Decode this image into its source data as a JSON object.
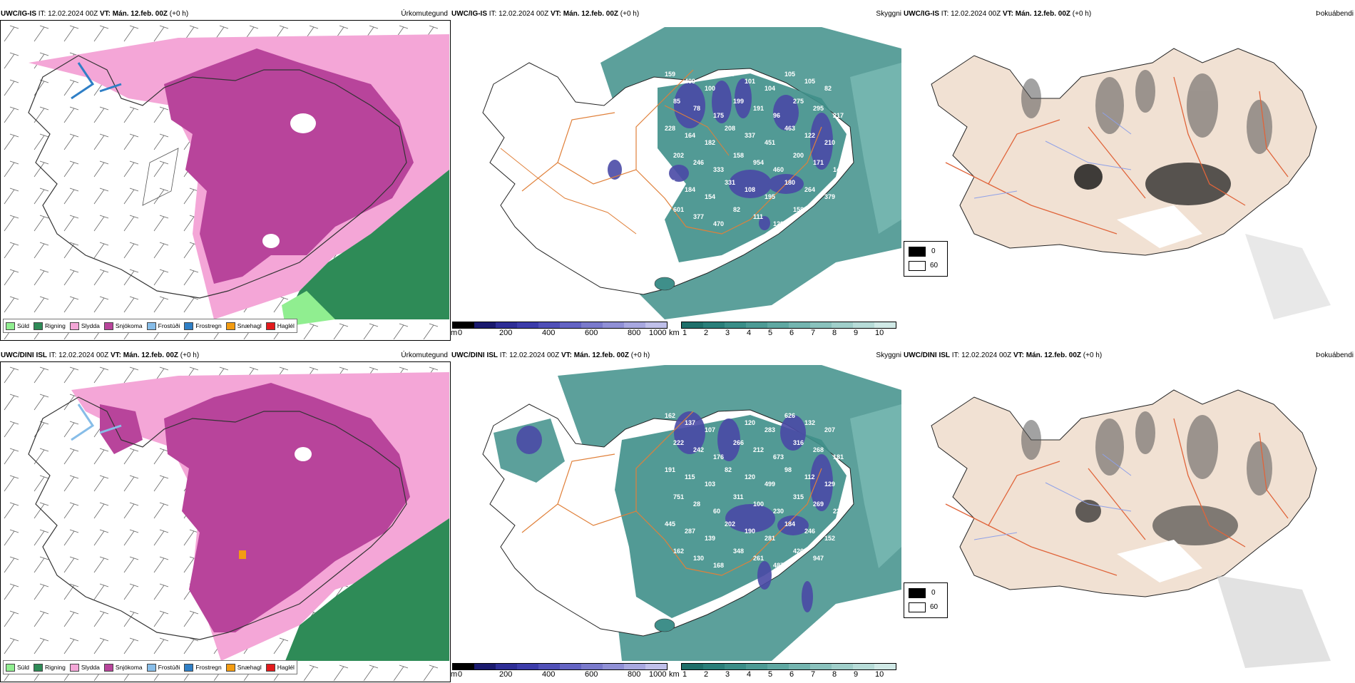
{
  "rows": [
    {
      "model": "UWC/IG-IS",
      "it_label": "IT:",
      "it_value": "12.02.2024 00Z",
      "vt_label": "VT:",
      "vt_value": "Mán. 12.feb. 00Z",
      "lead": "(+0 h)",
      "cloud_labels": [
        "159",
        "409",
        "100",
        "107",
        "101",
        "104",
        "105",
        "105",
        "82",
        "85",
        "78",
        "175",
        "199",
        "191",
        "96",
        "275",
        "295",
        "217",
        "228",
        "164",
        "182",
        "208",
        "337",
        "451",
        "463",
        "122",
        "210",
        "202",
        "246",
        "333",
        "158",
        "954",
        "460",
        "200",
        "171",
        "148",
        "195",
        "184",
        "154",
        "331",
        "108",
        "195",
        "180",
        "264",
        "379",
        "601",
        "377",
        "470",
        "82",
        "111",
        "129",
        "158"
      ]
    },
    {
      "model": "UWC/DINI ISL",
      "it_label": "IT:",
      "it_value": "12.02.2024 00Z",
      "vt_label": "VT:",
      "vt_value": "Mán. 12.feb. 00Z",
      "lead": "(+0 h)",
      "cloud_labels": [
        "162",
        "137",
        "107",
        "97",
        "120",
        "283",
        "626",
        "132",
        "207",
        "222",
        "242",
        "176",
        "266",
        "212",
        "673",
        "316",
        "268",
        "181",
        "191",
        "115",
        "103",
        "82",
        "120",
        "499",
        "98",
        "112",
        "129",
        "751",
        "28",
        "60",
        "311",
        "100",
        "230",
        "315",
        "269",
        "230",
        "445",
        "287",
        "139",
        "202",
        "190",
        "281",
        "184",
        "246",
        "152",
        "162",
        "130",
        "168",
        "348",
        "261",
        "487",
        "420",
        "947"
      ]
    }
  ],
  "panel_titles": [
    "Úrkomutegund",
    "Skyggni",
    "Þokuábendi"
  ],
  "precip_legend": [
    {
      "label": "Súld",
      "color": "#90ee90"
    },
    {
      "label": "Rigning",
      "color": "#2e8b57"
    },
    {
      "label": "Slydda",
      "color": "#f4a6d7"
    },
    {
      "label": "Snjókoma",
      "color": "#b8449b"
    },
    {
      "label": "Frostúði",
      "color": "#87bde8"
    },
    {
      "label": "Frostregn",
      "color": "#2f7fc6"
    },
    {
      "label": "Snæhagl",
      "color": "#f39c12"
    },
    {
      "label": "Haglél",
      "color": "#e31a1c"
    }
  ],
  "visibility_m": {
    "unit": "m",
    "ticks": [
      "0",
      "200",
      "400",
      "600",
      "800",
      "1000"
    ],
    "colors": [
      "#000000",
      "#1a1a6e",
      "#2e2e96",
      "#3c3caa",
      "#5050b8",
      "#6464c4",
      "#7a7acc",
      "#9090d6",
      "#a8a8e0",
      "#c0c0ea"
    ]
  },
  "visibility_km": {
    "unit": "km",
    "ticks": [
      "1",
      "2",
      "3",
      "4",
      "5",
      "6",
      "7",
      "8",
      "9",
      "10"
    ],
    "colors": [
      "#1f6f6a",
      "#2a7f7a",
      "#3a8e88",
      "#4d9b95",
      "#5fa8a2",
      "#74b5b0",
      "#8ac2bd",
      "#a0cfca",
      "#b7dcd8",
      "#d0e9e6"
    ]
  },
  "fog_legend": {
    "min": "0",
    "max": "60"
  },
  "colors": {
    "land_fog": "#f1e1d3",
    "roads": "#e0643a",
    "rivers": "#8ea0e8",
    "snow": "#b8449b",
    "sleet": "#f4a6d7",
    "rain": "#2e8b57",
    "vis_teal": "#3f8f8a",
    "vis_blue": "#4a4aa6"
  }
}
